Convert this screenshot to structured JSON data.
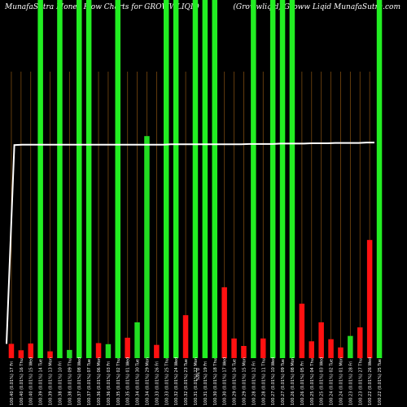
{
  "header": {
    "left": "MunafaSutra  Money Flow  Charts for GROWWLIQID",
    "right": "(Growwliqid)  Groww Liqid  MunafaSutra.com"
  },
  "chart_data": {
    "type": "bar",
    "title": "MunafaSutra Money Flow Charts for GROWWLIQID",
    "center_label": "0.76%",
    "colors": {
      "up": "#22dd22",
      "down": "#ff1111",
      "up_full": "#22ee22",
      "price_line": "#ffffff",
      "grid": "#7a4a10",
      "background": "#000000"
    },
    "ylim": [
      0,
      100
    ],
    "price_line_values": [
      4,
      59.5,
      59.6,
      59.6,
      59.6,
      59.6,
      59.6,
      59.6,
      59.6,
      59.6,
      59.6,
      59.6,
      59.6,
      59.6,
      59.6,
      59.6,
      59.6,
      59.6,
      59.6,
      59.6,
      59.6,
      59.7,
      59.7,
      59.7,
      59.7,
      59.7,
      59.7,
      59.7,
      59.7,
      59.7,
      59.7,
      59.8,
      59.8,
      59.8,
      59.8,
      59.9,
      59.9,
      59.9,
      59.9,
      60.0,
      60.0,
      60.0,
      60.1,
      60.1,
      60.1,
      60.1,
      60.2,
      60.2
    ],
    "bars": [
      {
        "label": "100.40 (0.01%) 17 Fri",
        "color": "red",
        "value": 4.0
      },
      {
        "label": "100.40 (0.01%) 16 Thu",
        "color": "red",
        "value": 2.2
      },
      {
        "label": "100.40 (0.01%) 15 Wed",
        "color": "red",
        "value": 4.1
      },
      {
        "label": "100.39 (0.01%) 14 Tue",
        "color": "green",
        "value": 100
      },
      {
        "label": "100.39 (0.01%) 13 Mon",
        "color": "red",
        "value": 1.9
      },
      {
        "label": "100.38 (0.01%) 10 Fri",
        "color": "green",
        "value": 100
      },
      {
        "label": "100.38 (0.01%) 09 Thu",
        "color": "green",
        "value": 2.3
      },
      {
        "label": "100.37 (0.01%) 08 Wed",
        "color": "green",
        "value": 100
      },
      {
        "label": "100.37 (0.01%) 07 Tue",
        "color": "green",
        "value": 100
      },
      {
        "label": "100.36 (0.01%) 06 Mon",
        "color": "red",
        "value": 4.2
      },
      {
        "label": "100.36 (0.01%) 03 Fri",
        "color": "green",
        "value": 3.9
      },
      {
        "label": "100.35 (0.01%) 02 Thu",
        "color": "green",
        "value": 100
      },
      {
        "label": "100.35 (0.01%) 01 Wed",
        "color": "red",
        "value": 5.7
      },
      {
        "label": "100.34 (0.01%) 30 Tue",
        "color": "green",
        "value": 10
      },
      {
        "label": "100.34 (0.01%) 29 Mon",
        "color": "green",
        "value": 62
      },
      {
        "label": "100.33 (0.01%) 26 Fri",
        "color": "red",
        "value": 3.7
      },
      {
        "label": "100.33 (0.01%) 25 Thu",
        "color": "green",
        "value": 100
      },
      {
        "label": "100.32 (0.01%) 24 Wed",
        "color": "green",
        "value": 100
      },
      {
        "label": "100.32 (0.01%) 23 Tue",
        "color": "red",
        "value": 12.0
      },
      {
        "label": "100.31 (0.01%) 22 Mon",
        "color": "green",
        "value": 100
      },
      {
        "label": "100.31 (0.01%) 19 Fri",
        "color": "green",
        "value": 100
      },
      {
        "label": "100.30 (0.01%) 18 Thu",
        "color": "green",
        "value": 100
      },
      {
        "label": "100.30 (0.01%) 17 Wed",
        "color": "red",
        "value": 19.8
      },
      {
        "label": "100.29 (0.01%) 16 Tue",
        "color": "red",
        "value": 5.5
      },
      {
        "label": "100.29 (0.01%) 15 Mon",
        "color": "red",
        "value": 3.4
      },
      {
        "label": "100.28 (0.01%) 12 Fri",
        "color": "green",
        "value": 100
      },
      {
        "label": "100.28 (0.01%) 11 Thu",
        "color": "red",
        "value": 5.5
      },
      {
        "label": "100.27 (0.01%) 10 Wed",
        "color": "green",
        "value": 100
      },
      {
        "label": "100.27 (0.01%) 09 Tue",
        "color": "green",
        "value": 100
      },
      {
        "label": "100.26 (0.01%) 08 Mon",
        "color": "green",
        "value": 100
      },
      {
        "label": "100.26 (0.01%) 05 Fri",
        "color": "red",
        "value": 15.2
      },
      {
        "label": "100.25 (0.01%) 04 Thu",
        "color": "red",
        "value": 4.7
      },
      {
        "label": "100.25 (0.01%) 03 Wed",
        "color": "red",
        "value": 10.0
      },
      {
        "label": "100.24 (0.01%) 02 Tue",
        "color": "red",
        "value": 5.3
      },
      {
        "label": "100.24 (0.01%) 01 Mon",
        "color": "red",
        "value": 3.0
      },
      {
        "label": "100.23 (0.01%) 28 Fri",
        "color": "green",
        "value": 6.2
      },
      {
        "label": "100.23 (0.01%) 27 Thu",
        "color": "red",
        "value": 8.6
      },
      {
        "label": "100.22 (0.01%) 26 Wed",
        "color": "red",
        "value": 33.0
      },
      {
        "label": "100.22 (0.01%) 25 Tue",
        "color": "green",
        "value": 100
      }
    ]
  }
}
